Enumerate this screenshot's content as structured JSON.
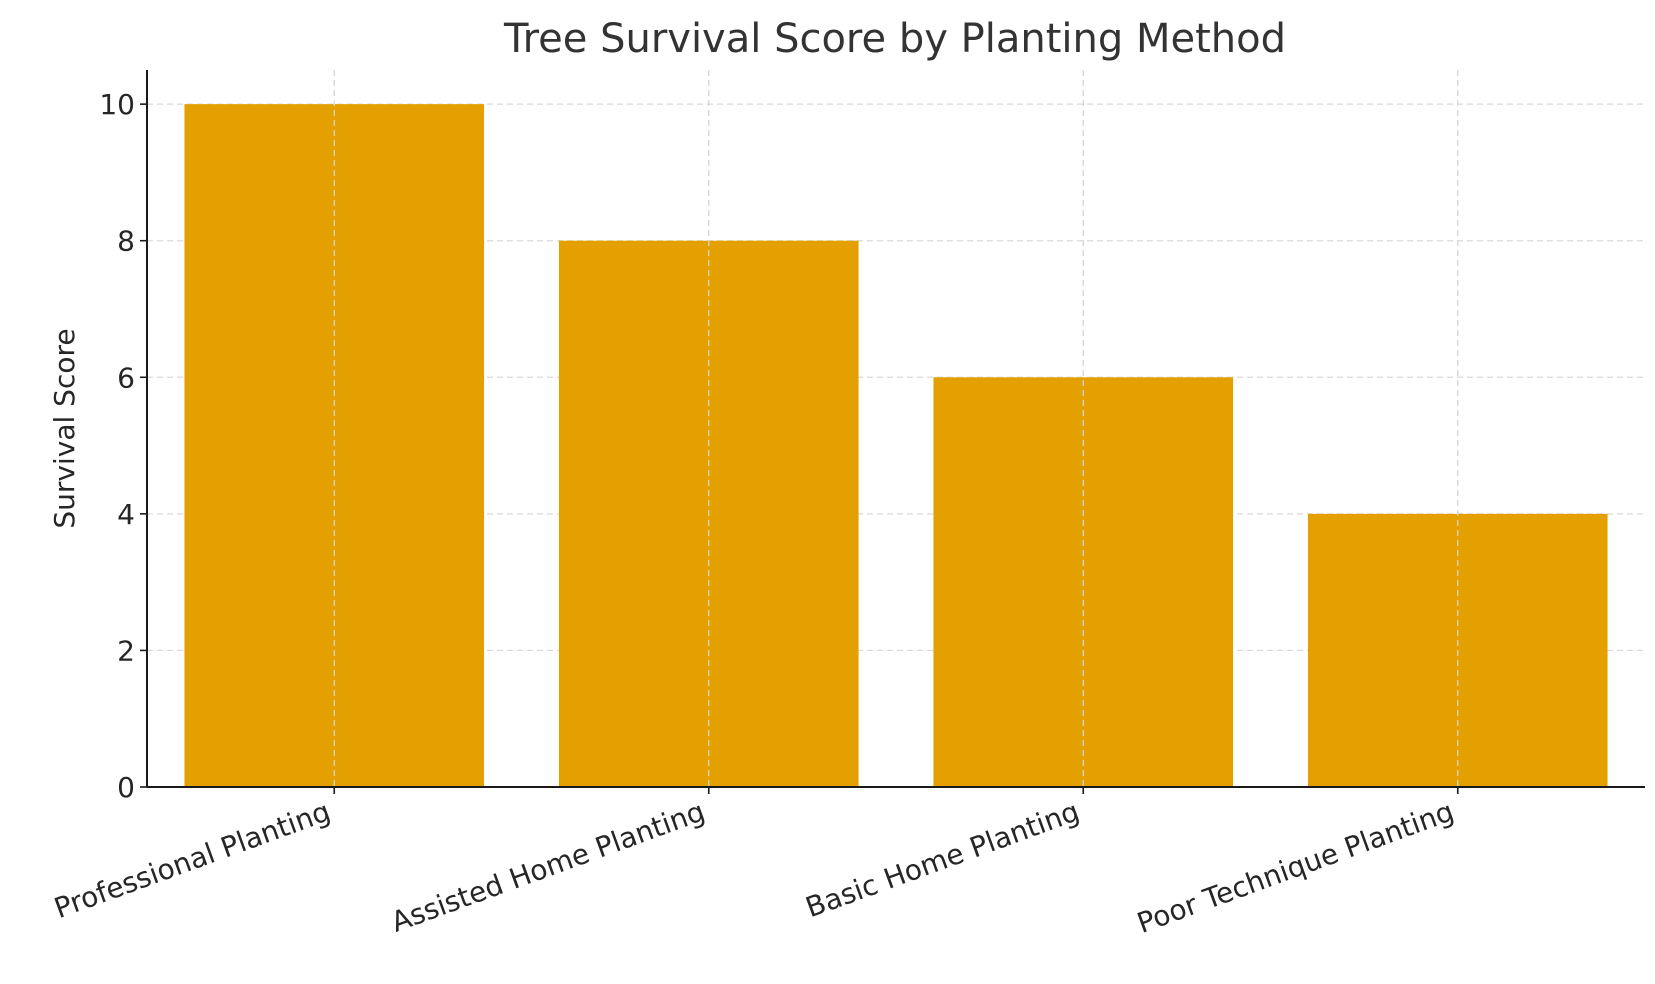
{
  "chart_data": {
    "type": "bar",
    "title": "Tree Survival Score by Planting Method",
    "xlabel": "",
    "ylabel": "Survival Score",
    "categories": [
      "Professional Planting",
      "Assisted Home Planting",
      "Basic Home Planting",
      "Poor Technique Planting"
    ],
    "values": [
      10,
      8,
      6,
      4
    ],
    "ylim": [
      0,
      10.5
    ],
    "yticks": [
      0,
      2,
      4,
      6,
      8,
      10
    ],
    "bar_color": "#E4A000",
    "grid": true,
    "legend": "none"
  }
}
